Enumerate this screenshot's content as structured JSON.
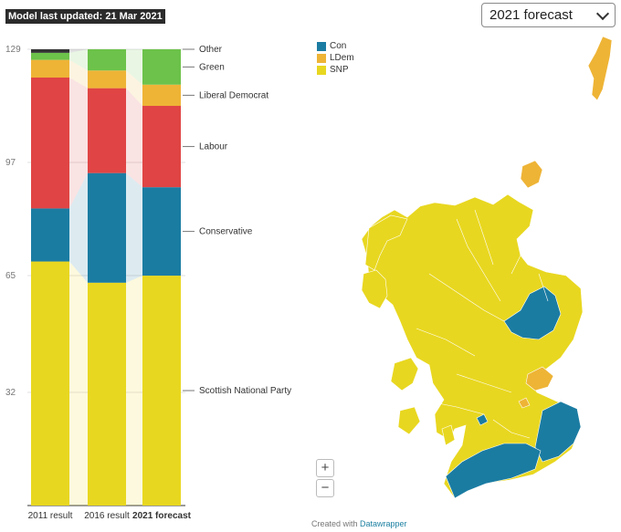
{
  "badge": "Model last updated: 21 Mar 2021",
  "dropdown": {
    "selected": "2021 forecast"
  },
  "chart_data": {
    "type": "bar",
    "stacked": true,
    "categories": [
      "2011 result",
      "2016 result",
      "2021 forecast"
    ],
    "yticks": [
      129,
      97,
      65,
      32
    ],
    "ylim": [
      0,
      129
    ],
    "grid": true,
    "series": [
      {
        "name": "Scottish National Party",
        "color": "#e8d720",
        "values": [
          69,
          63,
          65
        ]
      },
      {
        "name": "Conservative",
        "color": "#1b7ca2",
        "values": [
          15,
          31,
          25
        ]
      },
      {
        "name": "Labour",
        "color": "#e04444",
        "values": [
          37,
          24,
          23
        ]
      },
      {
        "name": "Liberal Democrat",
        "color": "#eeb436",
        "values": [
          5,
          5,
          6
        ]
      },
      {
        "name": "Green",
        "color": "#6cc24a",
        "values": [
          2,
          6,
          10
        ]
      },
      {
        "name": "Other",
        "color": "#333333",
        "values": [
          1,
          0,
          0
        ]
      }
    ]
  },
  "map_legend": [
    {
      "label": "Con",
      "color": "#1b7ca2"
    },
    {
      "label": "LDem",
      "color": "#eeb436"
    },
    {
      "label": "SNP",
      "color": "#e8d720"
    }
  ],
  "zoom": {
    "in": "+",
    "out": "−"
  },
  "credit": {
    "prefix": "Created with ",
    "link": "Datawrapper"
  }
}
